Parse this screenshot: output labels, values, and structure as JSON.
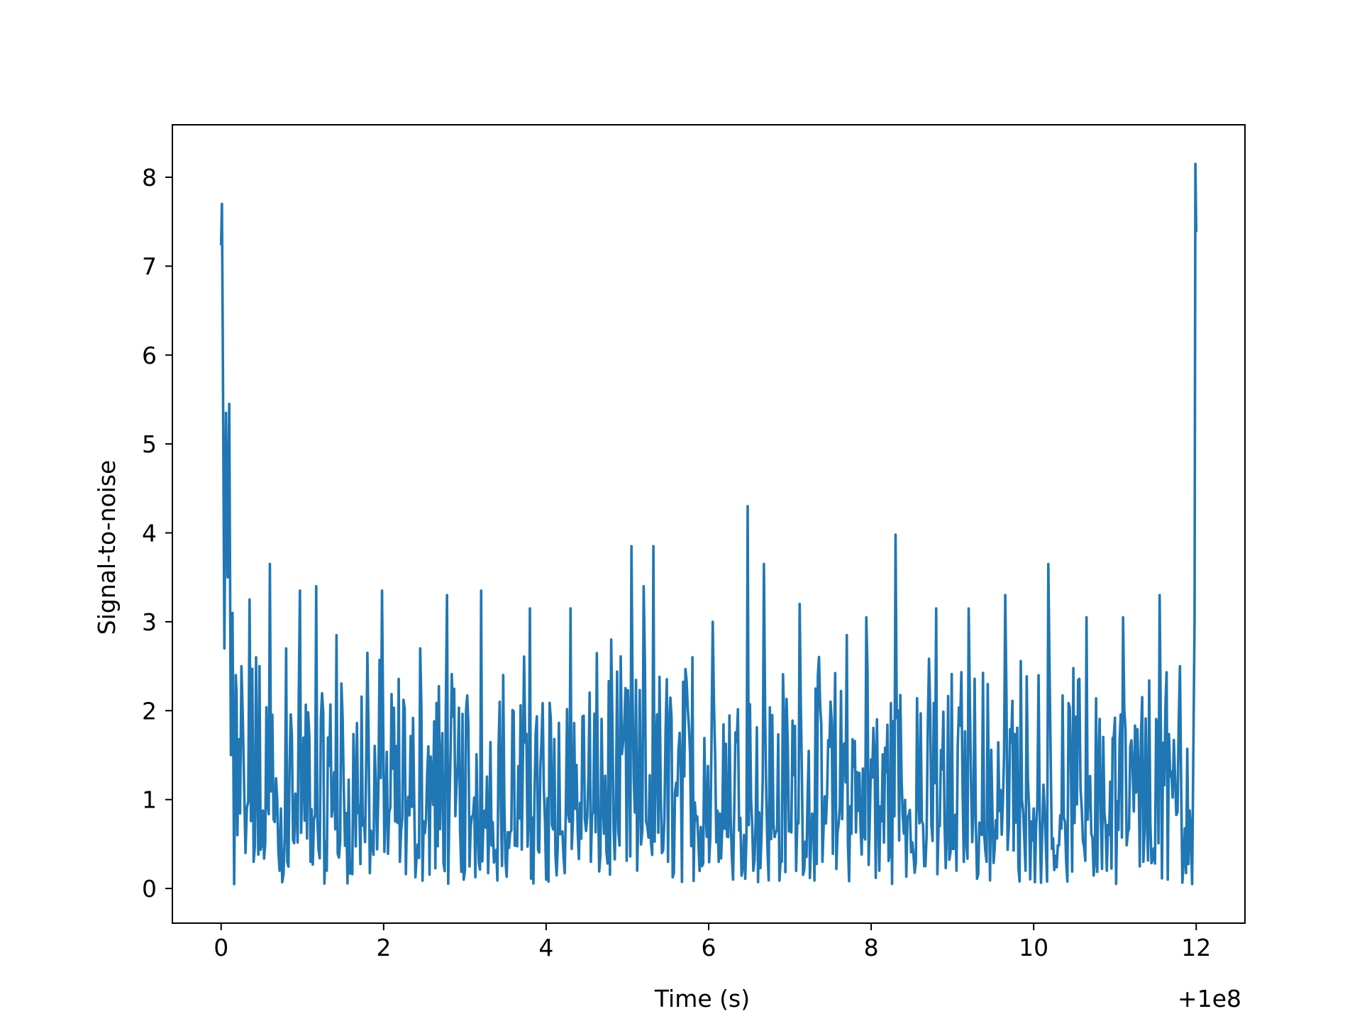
{
  "chart_data": {
    "type": "line",
    "title": "",
    "xlabel": "Time (s)",
    "ylabel": "Signal-to-noise",
    "x_offset_label": "+1e8",
    "xlim": [
      -0.6,
      12.6
    ],
    "ylim": [
      -0.39,
      8.59
    ],
    "xticks": [
      0,
      2,
      4,
      6,
      8,
      10,
      12
    ],
    "xtick_labels": [
      "0",
      "2",
      "4",
      "6",
      "8",
      "10",
      "12"
    ],
    "yticks": [
      0,
      1,
      2,
      3,
      4,
      5,
      6,
      7,
      8
    ],
    "ytick_labels": [
      "0",
      "1",
      "2",
      "3",
      "4",
      "5",
      "6",
      "7",
      "8"
    ],
    "grid": false,
    "line_color": "#2077b4",
    "series": [
      {
        "x": [
          0.0,
          0.01,
          0.02,
          0.04,
          0.06,
          0.08,
          0.1,
          0.12,
          0.14,
          0.16,
          0.18,
          0.2,
          0.25,
          0.3,
          0.35,
          0.4,
          0.43,
          0.5,
          0.6,
          0.72,
          0.8,
          0.97,
          1.1,
          1.17,
          1.3,
          1.42,
          1.6,
          1.8,
          1.98,
          2.2,
          2.45,
          2.78,
          3.0,
          3.2,
          3.5,
          3.8,
          4.0,
          4.3,
          4.55,
          4.8,
          5.05,
          5.12,
          5.2,
          5.32,
          5.5,
          5.8,
          6.05,
          6.3,
          6.48,
          6.55,
          6.68,
          6.9,
          7.12,
          7.4,
          7.7,
          7.94,
          8.1,
          8.3,
          8.55,
          8.8,
          9.05,
          9.2,
          9.42,
          9.65,
          9.9,
          10.0,
          10.18,
          10.4,
          10.65,
          10.9,
          11.1,
          11.35,
          11.55,
          11.65,
          11.8,
          11.95,
          11.98,
          11.99,
          12.0
        ],
        "y": [
          7.25,
          7.7,
          6.2,
          2.7,
          5.35,
          3.5,
          5.45,
          1.5,
          3.1,
          0.05,
          2.4,
          0.6,
          2.5,
          0.4,
          3.25,
          0.3,
          2.6,
          0.5,
          3.65,
          0.2,
          2.7,
          3.35,
          0.3,
          3.4,
          0.2,
          2.85,
          0.3,
          2.65,
          3.35,
          0.3,
          2.7,
          3.3,
          0.2,
          3.35,
          0.3,
          3.15,
          0.1,
          3.15,
          0.3,
          2.8,
          3.85,
          0.2,
          3.4,
          3.85,
          0.3,
          2.6,
          3.0,
          0.1,
          4.3,
          0.2,
          3.65,
          0.3,
          3.2,
          0.3,
          2.85,
          3.05,
          0.2,
          3.98,
          0.3,
          3.15,
          0.2,
          3.15,
          0.3,
          3.3,
          0.2,
          0.9,
          3.65,
          0.3,
          3.05,
          0.2,
          3.05,
          0.3,
          3.3,
          0.1,
          2.5,
          0.05,
          3.05,
          8.15,
          7.4
        ]
      }
    ]
  }
}
